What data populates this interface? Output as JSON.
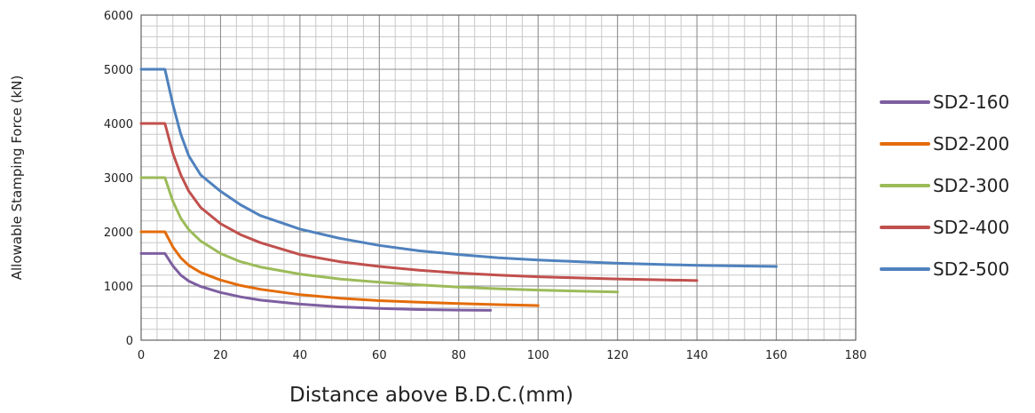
{
  "chart_data": {
    "type": "line",
    "xlabel": "Distance above B.D.C.(mm)",
    "ylabel": "Allowable Stamping Force (kN)",
    "xlim": [
      0,
      180
    ],
    "ylim": [
      0,
      6000
    ],
    "xticks": [
      0,
      20,
      40,
      60,
      80,
      100,
      120,
      140,
      160,
      180
    ],
    "yticks": [
      0,
      1000,
      2000,
      3000,
      4000,
      5000,
      6000
    ],
    "x_minor_step": 4,
    "y_minor_step": 200,
    "grid": true,
    "legend_position": "right",
    "series": [
      {
        "name": "SD2-160",
        "color": "#7d5fa0",
        "x": [
          0,
          6,
          8,
          10,
          12,
          15,
          20,
          25,
          30,
          40,
          50,
          60,
          70,
          80,
          88
        ],
        "y": [
          1600,
          1600,
          1370,
          1200,
          1090,
          990,
          880,
          800,
          740,
          665,
          615,
          585,
          565,
          555,
          550
        ]
      },
      {
        "name": "SD2-200",
        "color": "#e36c09",
        "x": [
          0,
          6,
          8,
          10,
          12,
          15,
          20,
          25,
          30,
          40,
          50,
          60,
          70,
          80,
          90,
          100
        ],
        "y": [
          2000,
          2000,
          1720,
          1520,
          1380,
          1250,
          1110,
          1010,
          940,
          840,
          775,
          730,
          700,
          675,
          655,
          640
        ]
      },
      {
        "name": "SD2-300",
        "color": "#9bbb59",
        "x": [
          0,
          6,
          8,
          10,
          12,
          15,
          20,
          25,
          30,
          40,
          50,
          60,
          70,
          80,
          90,
          100,
          110,
          120
        ],
        "y": [
          3000,
          3000,
          2560,
          2250,
          2040,
          1830,
          1600,
          1450,
          1350,
          1220,
          1130,
          1070,
          1020,
          980,
          950,
          925,
          905,
          890
        ]
      },
      {
        "name": "SD2-400",
        "color": "#c0504d",
        "x": [
          0,
          6,
          8,
          10,
          12,
          15,
          20,
          25,
          30,
          40,
          50,
          60,
          70,
          80,
          90,
          100,
          110,
          120,
          130,
          140
        ],
        "y": [
          4000,
          4000,
          3450,
          3050,
          2750,
          2450,
          2150,
          1950,
          1800,
          1580,
          1450,
          1360,
          1290,
          1240,
          1200,
          1170,
          1150,
          1130,
          1115,
          1100
        ]
      },
      {
        "name": "SD2-500",
        "color": "#4f81bd",
        "x": [
          0,
          6,
          8,
          10,
          12,
          15,
          20,
          25,
          30,
          40,
          50,
          60,
          70,
          80,
          90,
          100,
          110,
          120,
          130,
          140,
          150,
          160
        ],
        "y": [
          5000,
          5000,
          4350,
          3800,
          3400,
          3050,
          2750,
          2500,
          2300,
          2050,
          1880,
          1750,
          1650,
          1580,
          1520,
          1480,
          1450,
          1420,
          1400,
          1380,
          1370,
          1360
        ]
      }
    ]
  }
}
